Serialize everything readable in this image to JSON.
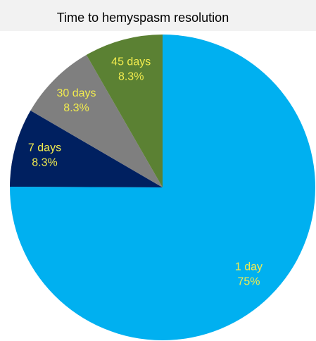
{
  "chart_data": {
    "type": "pie",
    "title": "Time to hemyspasm resolution",
    "categories": [
      "1 day",
      "7 days",
      "30 days",
      "45 days"
    ],
    "values": [
      75,
      8.3,
      8.3,
      8.3
    ],
    "value_labels": [
      "75%",
      "8.3%",
      "8.3%",
      "8.3%"
    ],
    "colors": [
      "#00b0f0",
      "#002060",
      "#7f7f7f",
      "#5b8133"
    ],
    "label_color": "#f2ec4e"
  }
}
